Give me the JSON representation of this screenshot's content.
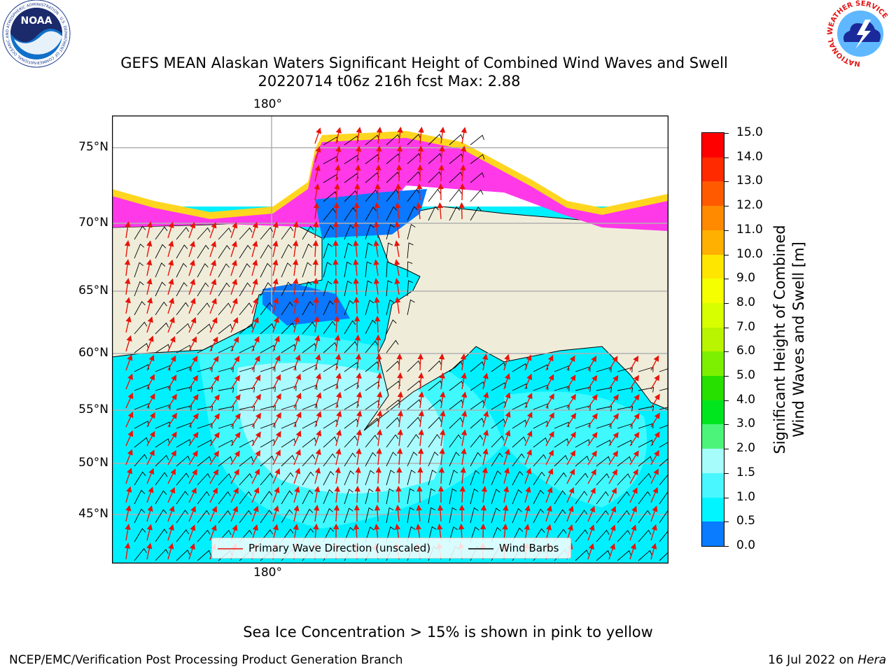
{
  "header": {
    "title_line1": "GEFS MEAN Alaskan Waters Significant Height of Combined Wind Waves and Swell",
    "title_line2": "20220714 t06z 216h fcst   Max: 2.88"
  },
  "logos": {
    "left": {
      "text": "NOAA",
      "ring_text": "NATIONAL OCEANIC AND ATMOSPHERIC ADMINISTRATION · U.S. DEPARTMENT OF COMMERCE"
    },
    "right": {
      "ring_text": "NATIONAL WEATHER SERVICE"
    }
  },
  "map": {
    "top_lon_label": "180°",
    "bottom_lon_label": "180°",
    "lat_labels": [
      "75°N",
      "70°N",
      "65°N",
      "60°N",
      "55°N",
      "50°N",
      "45°N"
    ],
    "colors": {
      "land": "#efedda",
      "ocean_low": "#00f0ff",
      "ocean_mid": "#3ff9ff",
      "ocean_high": "#a9fbff",
      "deep_blue": "#0a78ff",
      "ice": "#ff38e8",
      "ice_edge": "#ffd61f",
      "arrow": "#e8140a",
      "barb": "#000000"
    },
    "legend": {
      "primary": "Primary Wave Direction (unscaled)",
      "barbs": "Wind Barbs"
    }
  },
  "colorbar": {
    "label_line1": "Significant Height of Combined",
    "label_line2": "Wind Waves and Swell [m]",
    "ticks": [
      "15.0",
      "14.0",
      "13.0",
      "12.0",
      "11.0",
      "10.0",
      "9.0",
      "8.0",
      "7.0",
      "6.0",
      "5.0",
      "4.0",
      "3.0",
      "2.0",
      "1.5",
      "1.0",
      "0.5",
      "0.0"
    ],
    "colors": [
      "#ff0000",
      "#ff2a00",
      "#ff5a00",
      "#ff8a00",
      "#ffb000",
      "#ffe600",
      "#f6ff00",
      "#d8ff00",
      "#b9f400",
      "#7cf000",
      "#28e000",
      "#00e61e",
      "#4cf57a",
      "#a6fbfb",
      "#48f7ff",
      "#00f5ff",
      "#0a7cff",
      "#0000ff"
    ]
  },
  "footer": {
    "note": "Sea Ice Concentration > 15% is shown in pink to yellow",
    "left": "NCEP/EMC/Verification Post Processing Product Generation Branch",
    "right_prefix": "16 Jul 2022 on ",
    "right_host": "Hera"
  }
}
